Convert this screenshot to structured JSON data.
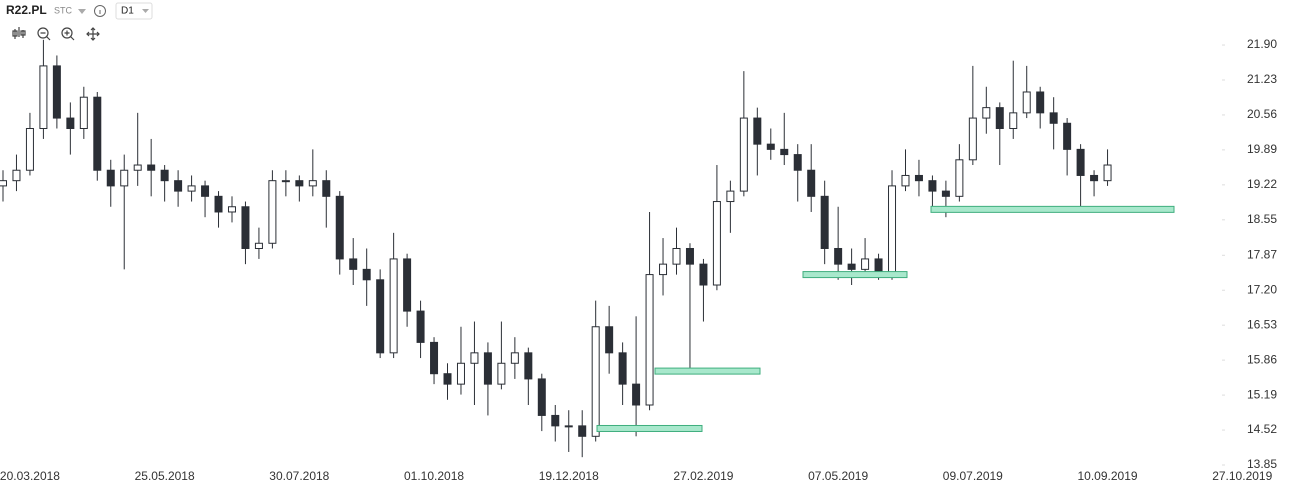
{
  "toolbar": {
    "symbol": "R22.PL",
    "kind": "STC",
    "interval": "D1"
  },
  "chart_data": {
    "type": "candlestick",
    "categories": [
      null,
      null,
      "20.03.2018",
      null,
      null,
      null,
      null,
      null,
      null,
      null,
      null,
      null,
      "25.05.2018",
      null,
      null,
      null,
      null,
      null,
      null,
      null,
      null,
      null,
      "30.07.2018",
      null,
      null,
      null,
      null,
      null,
      null,
      null,
      null,
      null,
      "01.10.2018",
      null,
      null,
      null,
      null,
      null,
      null,
      null,
      null,
      null,
      "19.12.2018",
      null,
      null,
      null,
      null,
      null,
      null,
      null,
      null,
      null,
      "27.02.2019",
      null,
      null,
      null,
      null,
      null,
      null,
      null,
      null,
      null,
      "07.05.2019",
      null,
      null,
      null,
      null,
      null,
      null,
      null,
      null,
      null,
      "09.07.2019",
      null,
      null,
      null,
      null,
      null,
      null,
      null,
      null,
      null,
      "10.09.2019",
      null,
      null,
      null,
      null,
      null,
      null,
      null,
      null,
      null,
      "27.10.2019"
    ],
    "open": [
      19.2,
      19.3,
      19.5,
      20.3,
      21.5,
      20.5,
      20.3,
      20.9,
      19.5,
      19.2,
      19.5,
      19.6,
      19.5,
      19.3,
      19.1,
      19.2,
      19.0,
      18.7,
      18.8,
      18.0,
      18.1,
      19.3,
      19.3,
      19.2,
      19.3,
      19.0,
      17.8,
      17.6,
      17.4,
      16.0,
      17.8,
      16.8,
      16.2,
      15.6,
      15.4,
      15.8,
      16.0,
      15.4,
      15.8,
      16.0,
      15.5,
      14.8,
      14.6,
      14.6,
      14.4,
      16.5,
      16.0,
      15.4,
      15.0,
      17.5,
      17.7,
      18.0,
      17.7,
      17.3,
      18.9,
      19.1,
      20.5,
      20.0,
      19.9,
      19.8,
      19.5,
      19.0,
      18.0,
      17.7,
      17.6,
      17.8,
      17.5,
      19.2,
      19.4,
      19.3,
      19.1,
      19.0,
      19.7,
      20.5,
      20.7,
      20.3,
      20.6,
      21.0,
      20.6,
      20.4,
      19.9,
      19.4,
      19.3,
      null,
      null,
      null,
      null,
      null,
      null,
      null,
      null,
      null,
      null
    ],
    "high": [
      19.5,
      19.8,
      20.6,
      22.0,
      21.7,
      20.8,
      21.1,
      21.0,
      19.7,
      19.8,
      20.6,
      20.1,
      19.6,
      19.5,
      19.4,
      19.3,
      19.1,
      19.0,
      18.9,
      18.4,
      19.5,
      19.5,
      19.4,
      19.9,
      19.5,
      19.1,
      18.2,
      18.0,
      17.6,
      18.3,
      17.9,
      17.0,
      16.3,
      15.8,
      16.5,
      16.6,
      16.2,
      16.6,
      16.3,
      16.1,
      15.6,
      15.0,
      14.9,
      14.9,
      17.0,
      16.9,
      16.2,
      16.7,
      18.7,
      18.2,
      18.4,
      18.1,
      17.8,
      19.6,
      19.3,
      21.4,
      20.7,
      20.3,
      20.6,
      20.0,
      20.0,
      19.3,
      18.8,
      18.0,
      18.2,
      17.9,
      19.5,
      19.9,
      19.7,
      19.4,
      19.3,
      20.0,
      21.5,
      21.1,
      20.8,
      21.6,
      21.5,
      21.1,
      20.9,
      20.5,
      20.0,
      19.5,
      19.9,
      null,
      null,
      null,
      null,
      null,
      null,
      null,
      null,
      null,
      null
    ],
    "low": [
      18.9,
      19.1,
      19.4,
      20.1,
      20.3,
      19.8,
      20.1,
      19.3,
      18.8,
      17.6,
      19.2,
      19.0,
      18.9,
      18.8,
      18.9,
      18.6,
      18.4,
      18.5,
      17.7,
      17.8,
      18.0,
      19.0,
      18.9,
      19.0,
      18.4,
      17.5,
      17.3,
      16.9,
      15.9,
      15.9,
      16.5,
      15.9,
      15.4,
      15.1,
      15.2,
      15.0,
      14.8,
      15.3,
      15.5,
      15.0,
      14.5,
      14.3,
      14.1,
      14.0,
      14.3,
      15.6,
      15.0,
      14.4,
      14.9,
      17.1,
      17.5,
      15.6,
      16.6,
      17.2,
      18.3,
      19.0,
      19.4,
      19.7,
      19.6,
      18.9,
      18.7,
      17.7,
      17.4,
      17.3,
      17.5,
      17.4,
      17.4,
      19.1,
      19.0,
      18.8,
      18.6,
      18.9,
      19.6,
      20.2,
      19.6,
      20.1,
      20.5,
      20.3,
      19.9,
      19.4,
      18.7,
      19.0,
      19.2,
      null,
      null,
      null,
      null,
      null,
      null,
      null,
      null,
      null,
      null
    ],
    "close": [
      19.3,
      19.5,
      20.3,
      21.5,
      20.5,
      20.3,
      20.9,
      19.5,
      19.2,
      19.5,
      19.6,
      19.5,
      19.3,
      19.1,
      19.2,
      19.0,
      18.7,
      18.8,
      18.0,
      18.1,
      19.3,
      19.3,
      19.2,
      19.3,
      19.0,
      17.8,
      17.6,
      17.4,
      16.0,
      17.8,
      16.8,
      16.2,
      15.6,
      15.4,
      15.8,
      16.0,
      15.4,
      15.8,
      16.0,
      15.5,
      14.8,
      14.6,
      14.6,
      14.4,
      16.5,
      16.0,
      15.4,
      15.0,
      17.5,
      17.7,
      18.0,
      17.7,
      17.3,
      18.9,
      19.1,
      20.5,
      20.0,
      19.9,
      19.8,
      19.5,
      19.0,
      18.0,
      17.7,
      17.6,
      17.8,
      17.5,
      19.2,
      19.4,
      19.3,
      19.1,
      19.0,
      19.7,
      20.5,
      20.7,
      20.3,
      20.6,
      21.0,
      20.6,
      20.4,
      19.9,
      19.4,
      19.3,
      19.6,
      null,
      null,
      null,
      null,
      null,
      null,
      null,
      null,
      null,
      null
    ],
    "up_color": "#ffffff",
    "down_color": "#2b2f36",
    "outline_color": "#2b2f36",
    "zones": [
      14.55,
      15.65,
      17.5,
      18.75
    ],
    "zone_color": "#a8e8cc",
    "zone_outline": "#3fae7e",
    "ylim": [
      13.85,
      22.5
    ],
    "yticks": [
      {
        "value": 21.9,
        "label": "21.90"
      },
      21.23,
      20.56,
      19.89,
      19.22,
      18.55,
      17.87,
      {
        "value": 17.2,
        "label": "17.20"
      },
      16.53,
      15.86,
      15.19,
      14.52,
      13.85
    ]
  }
}
